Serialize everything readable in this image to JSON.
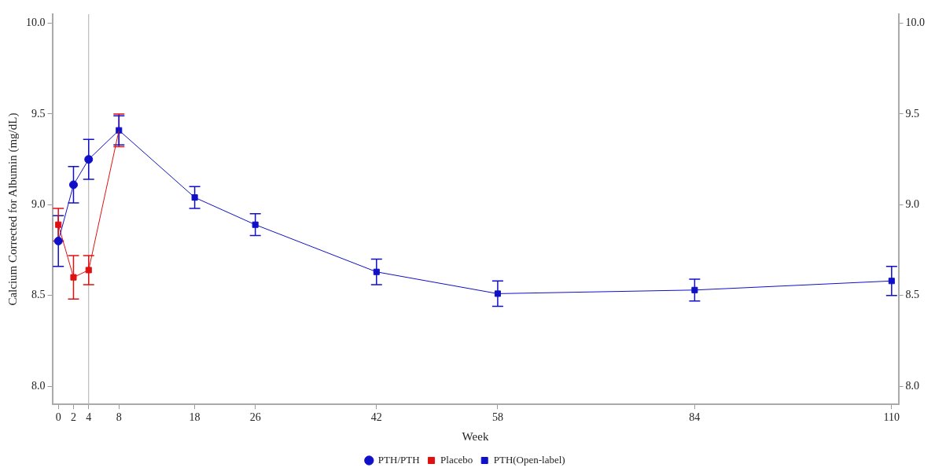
{
  "chart_data": {
    "type": "line",
    "xlabel": "Week",
    "ylabel": "Calcium Corrected for Albumin (mg/dL)",
    "xlim": [
      -0.8,
      110.9
    ],
    "xticks": [
      0,
      2,
      4,
      8,
      18,
      26,
      42,
      58,
      84,
      110
    ],
    "ylim": [
      7.9,
      10.05
    ],
    "yticks": [
      {
        "value": 8,
        "label": "8.0"
      },
      {
        "value": 8.5,
        "label": "8.5"
      },
      {
        "value": 9,
        "label": "9.0"
      },
      {
        "value": 9.5,
        "label": "9.5"
      },
      {
        "value": 10,
        "label": "10.0"
      }
    ],
    "y2lim": [
      7.9,
      10.05
    ],
    "y2ticks": [
      {
        "value": 8,
        "label": "8.0"
      },
      {
        "value": 8.5,
        "label": "8.5"
      },
      {
        "value": 9,
        "label": "9.0"
      },
      {
        "value": 9.5,
        "label": "9.5"
      },
      {
        "value": 10,
        "label": "10.0"
      }
    ],
    "grid": false,
    "legend": "bottom",
    "line_style": "solid",
    "ref_lines": [
      {
        "axis": "x",
        "value": 4,
        "color": "#b0b0b0"
      }
    ],
    "series": [
      {
        "name": "PTH/PTH",
        "color": "#1010c8",
        "marker": "circle",
        "x": [
          0,
          2,
          4,
          8
        ],
        "values": [
          8.8,
          9.11,
          9.25,
          9.41
        ],
        "errors": [
          0.14,
          0.1,
          0.11,
          null
        ]
      },
      {
        "name": "Placebo",
        "color": "#e01010",
        "marker": "square",
        "x": [
          0,
          2,
          4,
          8
        ],
        "values": [
          8.89,
          8.6,
          8.64,
          9.41
        ],
        "errors": [
          0.09,
          0.12,
          0.08,
          0.09
        ]
      },
      {
        "name": "PTH(Open-label)",
        "color": "#1010c8",
        "marker": "square",
        "x": [
          8,
          18,
          26,
          42,
          58,
          84,
          110
        ],
        "values": [
          9.41,
          9.04,
          8.89,
          8.63,
          8.51,
          8.53,
          8.58
        ],
        "errors": [
          0.08,
          0.06,
          0.06,
          0.07,
          0.07,
          0.06,
          0.08
        ]
      }
    ]
  }
}
